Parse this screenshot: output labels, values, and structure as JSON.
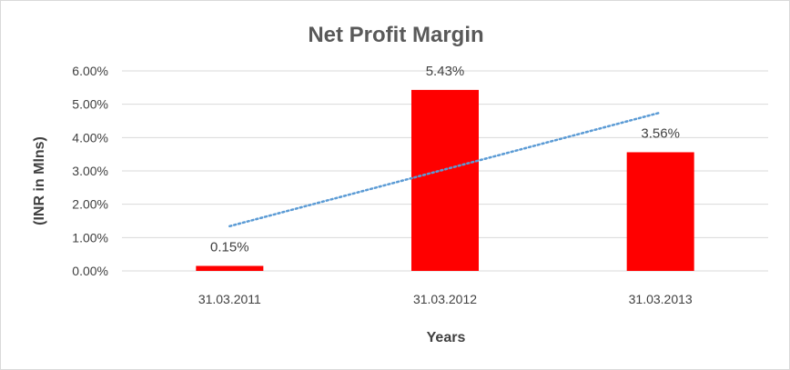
{
  "chart_data": {
    "type": "bar",
    "title": "Net Profit Margin",
    "xlabel": "Years",
    "ylabel": "(INR in Mlns)",
    "categories": [
      "31.03.2011",
      "31.03.2012",
      "31.03.2013"
    ],
    "values": [
      0.15,
      5.43,
      3.56
    ],
    "data_labels": [
      "0.15%",
      "5.43%",
      "3.56%"
    ],
    "y_ticks": [
      "0.00%",
      "1.00%",
      "2.00%",
      "3.00%",
      "4.00%",
      "5.00%",
      "6.00%"
    ],
    "ylim": [
      0,
      6
    ],
    "y_unit": "percent",
    "grid": true,
    "legend": "none",
    "trendline": {
      "type": "linear",
      "style": "dotted"
    },
    "colors": {
      "bar": "#ff0000",
      "trendline": "#5b9bd5",
      "gridline": "#d9d9d9"
    }
  }
}
